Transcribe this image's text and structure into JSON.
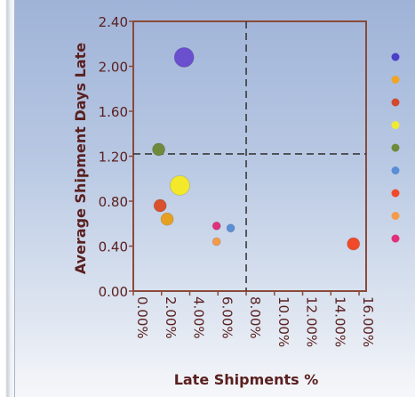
{
  "chart_data": {
    "type": "scatter",
    "title": "",
    "xlabel": "Late Shipments %",
    "ylabel": "Average Shipment Days Late",
    "x_ticks": [
      "0.00%",
      "2.00%",
      "4.00%",
      "6.00%",
      "8.00%",
      "10.00%",
      "12.00%",
      "14.00%",
      "16.00%"
    ],
    "y_ticks": [
      "0.00",
      "0.40",
      "0.80",
      "1.20",
      "1.60",
      "2.00",
      "2.40"
    ],
    "xlim": [
      0,
      16.5
    ],
    "ylim": [
      0,
      2.4
    ],
    "reference_lines": {
      "x": 8.0,
      "y": 1.22
    },
    "grid": false,
    "legend_placement": "right",
    "legend_labels_visible": false,
    "points": [
      {
        "x": 3.6,
        "y": 2.08,
        "size": "large",
        "color": "#6a4fcf"
      },
      {
        "x": 3.3,
        "y": 0.94,
        "size": "large",
        "color": "#f3e92a"
      },
      {
        "x": 1.8,
        "y": 1.26,
        "size": "medium",
        "color": "#6e8a3a"
      },
      {
        "x": 2.4,
        "y": 0.64,
        "size": "medium",
        "color": "#e8a020"
      },
      {
        "x": 1.9,
        "y": 0.76,
        "size": "medium",
        "color": "#d9512d"
      },
      {
        "x": 5.9,
        "y": 0.58,
        "size": "small",
        "color": "#e0317a"
      },
      {
        "x": 6.9,
        "y": 0.56,
        "size": "small",
        "color": "#5b8ed6"
      },
      {
        "x": 5.9,
        "y": 0.44,
        "size": "small",
        "color": "#f59a4a"
      },
      {
        "x": 15.6,
        "y": 0.42,
        "size": "medium",
        "color": "#f04a2a"
      }
    ],
    "legend_colors": [
      "#4b3fc9",
      "#f0a529",
      "#d24a2f",
      "#f1ea34",
      "#6e8a3a",
      "#5b8ed6",
      "#f04a2a",
      "#f59a4a",
      "#e0317a"
    ]
  }
}
